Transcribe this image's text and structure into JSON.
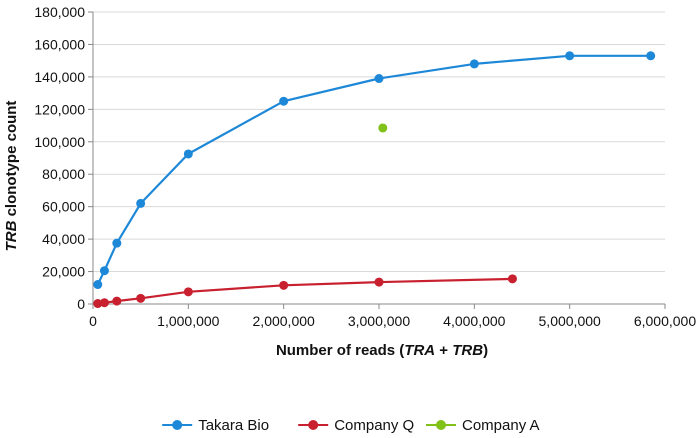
{
  "chart_data": {
    "type": "scatter",
    "x_label": {
      "prefix": "Number of reads (",
      "italic_1": "TRA",
      "plus": " + ",
      "italic_2": "TRB",
      "suffix": ")"
    },
    "y_label": {
      "italic": "TRB",
      "rest": " clonotype count"
    },
    "xlim": [
      0,
      6000000
    ],
    "ylim": [
      0,
      180000
    ],
    "x_ticks": [
      0,
      1000000,
      2000000,
      3000000,
      4000000,
      5000000,
      6000000
    ],
    "x_tick_labels": [
      "0",
      "1,000,000",
      "2,000,000",
      "3,000,000",
      "4,000,000",
      "5,000,000",
      "6,000,000"
    ],
    "y_ticks": [
      0,
      20000,
      40000,
      60000,
      80000,
      100000,
      120000,
      140000,
      160000,
      180000
    ],
    "y_tick_labels": [
      "0",
      "20,000",
      "40,000",
      "60,000",
      "80,000",
      "100,000",
      "120,000",
      "140,000",
      "160,000",
      "180,000"
    ],
    "grid": "horizontal",
    "legend_position": "bottom",
    "series": [
      {
        "name": "Takara Bio",
        "color": "#1e88d8",
        "line": true,
        "points": [
          [
            50000,
            12000
          ],
          [
            120000,
            20500
          ],
          [
            250000,
            37500
          ],
          [
            500000,
            62000
          ],
          [
            1000000,
            92500
          ],
          [
            2000000,
            125000
          ],
          [
            3000000,
            139000
          ],
          [
            4000000,
            148000
          ],
          [
            5000000,
            153000
          ],
          [
            5850000,
            153000
          ]
        ]
      },
      {
        "name": "Company Q",
        "color": "#c8202f",
        "line": true,
        "points": [
          [
            50000,
            300
          ],
          [
            120000,
            800
          ],
          [
            250000,
            1800
          ],
          [
            500000,
            3500
          ],
          [
            1000000,
            7500
          ],
          [
            2000000,
            11500
          ],
          [
            3000000,
            13500
          ],
          [
            4400000,
            15500
          ]
        ]
      },
      {
        "name": "Company A",
        "color": "#82c01a",
        "line": false,
        "points": [
          [
            3040000,
            108500
          ]
        ]
      }
    ]
  }
}
